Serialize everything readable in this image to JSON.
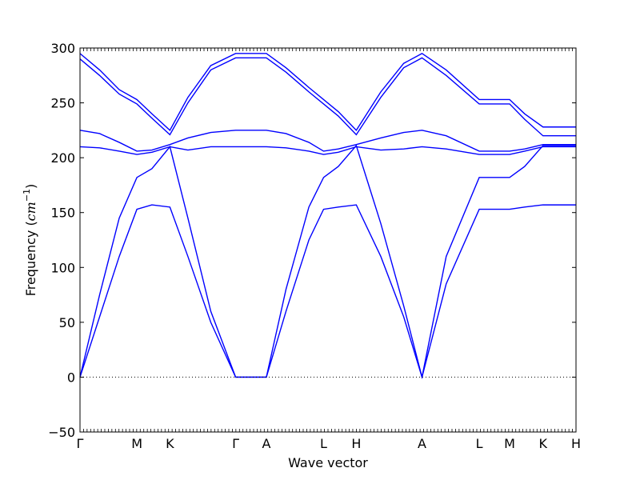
{
  "chart_data": {
    "type": "line",
    "xlabel": "Wave vector",
    "ylabel": "Frequency (cm⁻¹)",
    "ylabel_main": "Frequency (",
    "ylabel_unit": "cm",
    "ylabel_exp": "−1",
    "ylabel_close": ")",
    "ylim": [
      -50,
      300
    ],
    "yticks": [
      -50,
      0,
      50,
      100,
      150,
      200,
      250,
      300
    ],
    "xlim": [
      0,
      15.17
    ],
    "grid": false,
    "legend": "none",
    "zero_line": "dotted",
    "line_color": "#0000ff",
    "high_symmetry_points": [
      {
        "label": "Γ",
        "x": 0
      },
      {
        "label": "M",
        "x": 1.74
      },
      {
        "label": "K",
        "x": 2.75
      },
      {
        "label": "Γ",
        "x": 4.76
      },
      {
        "label": "A",
        "x": 5.7
      },
      {
        "label": "L",
        "x": 7.45
      },
      {
        "label": "H",
        "x": 8.45
      },
      {
        "label": "A",
        "x": 10.46
      },
      {
        "label": "L",
        "x": 12.21
      },
      {
        "label": "M",
        "x": 13.14
      },
      {
        "label": "K",
        "x": 14.16
      },
      {
        "label": "H",
        "x": 15.17
      }
    ],
    "series": [
      {
        "x": [
          0,
          0.6,
          1.2,
          1.74,
          2.2,
          2.75,
          3.3,
          4.0,
          4.76,
          5.7,
          6.3,
          7.0,
          7.45,
          7.9,
          8.45,
          9.2,
          9.9,
          10.46,
          11.2,
          12.21,
          12.7,
          13.14,
          13.6,
          14.16,
          15.17
        ],
        "y": [
          0,
          55,
          110,
          153,
          157,
          155,
          110,
          50,
          0,
          0,
          60,
          125,
          153,
          155,
          157,
          110,
          55,
          0,
          85,
          153,
          153,
          153,
          155,
          157,
          157
        ]
      },
      {
        "x": [
          0,
          0.6,
          1.2,
          1.74,
          2.2,
          2.75,
          3.3,
          4.0,
          4.76,
          5.7,
          6.3,
          7.0,
          7.45,
          7.9,
          8.45,
          9.2,
          9.9,
          10.46,
          11.2,
          12.21,
          12.7,
          13.14,
          13.6,
          14.16,
          15.17
        ],
        "y": [
          0,
          75,
          145,
          182,
          190,
          210,
          145,
          60,
          0,
          0,
          80,
          155,
          182,
          192,
          211,
          140,
          65,
          0,
          110,
          182,
          182,
          182,
          192,
          211,
          211
        ]
      },
      {
        "x": [
          0,
          0.6,
          1.2,
          1.74,
          2.2,
          2.75,
          3.3,
          4.0,
          4.76,
          5.7,
          6.3,
          7.0,
          7.45,
          7.9,
          8.45,
          9.2,
          9.9,
          10.46,
          11.2,
          12.21,
          12.7,
          13.14,
          13.6,
          14.16,
          15.17
        ],
        "y": [
          210,
          209,
          206,
          203,
          205,
          210,
          207,
          210,
          210,
          210,
          209,
          206,
          203,
          205,
          210,
          207,
          208,
          210,
          208,
          203,
          203,
          203,
          206,
          210,
          210
        ]
      },
      {
        "x": [
          0,
          0.6,
          1.2,
          1.74,
          2.2,
          2.75,
          3.3,
          4.0,
          4.76,
          5.7,
          6.3,
          7.0,
          7.45,
          7.9,
          8.45,
          9.2,
          9.9,
          10.46,
          11.2,
          12.21,
          12.7,
          13.14,
          13.6,
          14.16,
          15.17
        ],
        "y": [
          225,
          222,
          214,
          206,
          207,
          212,
          218,
          223,
          225,
          225,
          222,
          214,
          206,
          208,
          212,
          218,
          223,
          225,
          220,
          206,
          206,
          206,
          208,
          212,
          212
        ]
      },
      {
        "x": [
          0,
          0.6,
          1.2,
          1.74,
          2.2,
          2.75,
          3.3,
          4.0,
          4.76,
          5.7,
          6.3,
          7.0,
          7.45,
          7.9,
          8.45,
          9.2,
          9.9,
          10.46,
          11.2,
          12.21,
          12.7,
          13.14,
          13.6,
          14.16,
          15.17
        ],
        "y": [
          290,
          275,
          258,
          249,
          236,
          221,
          250,
          280,
          291,
          291,
          278,
          260,
          249,
          238,
          221,
          255,
          282,
          291,
          275,
          249,
          249,
          249,
          235,
          220,
          220
        ]
      },
      {
        "x": [
          0,
          0.6,
          1.2,
          1.74,
          2.2,
          2.75,
          3.3,
          4.0,
          4.76,
          5.7,
          6.3,
          7.0,
          7.45,
          7.9,
          8.45,
          9.2,
          9.9,
          10.46,
          11.2,
          12.21,
          12.7,
          13.14,
          13.6,
          14.16,
          15.17
        ],
        "y": [
          295,
          280,
          262,
          253,
          240,
          225,
          255,
          284,
          295,
          295,
          282,
          264,
          253,
          242,
          225,
          260,
          286,
          295,
          280,
          253,
          253,
          253,
          240,
          228,
          228
        ]
      }
    ]
  }
}
